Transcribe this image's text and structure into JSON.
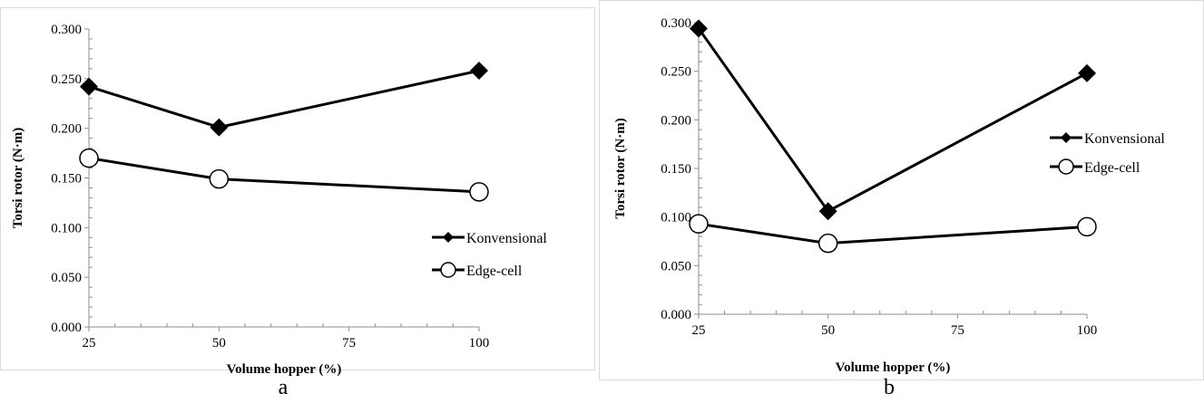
{
  "chart_data": [
    {
      "type": "line",
      "panel_label": "a",
      "xlabel": "Volume hopper (%)",
      "ylabel": "Torsi rotor (N·m)",
      "x_ticks": [
        "25",
        "50",
        "75",
        "100"
      ],
      "y_ticks": [
        "0.000",
        "0.050",
        "0.100",
        "0.150",
        "0.200",
        "0.250",
        "0.300"
      ],
      "ylim": [
        0,
        0.3
      ],
      "x": [
        25,
        50,
        100
      ],
      "legend_position": "right",
      "series": [
        {
          "name": "Konvensional",
          "marker": "filled-diamond",
          "values": [
            0.242,
            0.201,
            0.258
          ]
        },
        {
          "name": "Edge-cell",
          "marker": "open-circle",
          "values": [
            0.17,
            0.149,
            0.136
          ]
        }
      ]
    },
    {
      "type": "line",
      "panel_label": "b",
      "xlabel": "Volume hopper (%)",
      "ylabel": "Torsi rotor (N·m)",
      "x_ticks": [
        "25",
        "50",
        "75",
        "100"
      ],
      "y_ticks": [
        "0.000",
        "0.050",
        "0.100",
        "0.150",
        "0.200",
        "0.250",
        "0.300"
      ],
      "ylim": [
        0,
        0.3
      ],
      "x": [
        25,
        50,
        100
      ],
      "legend_position": "right",
      "series": [
        {
          "name": "Konvensional",
          "marker": "filled-diamond",
          "values": [
            0.294,
            0.106,
            0.248
          ]
        },
        {
          "name": "Edge-cell",
          "marker": "open-circle",
          "values": [
            0.093,
            0.073,
            0.09
          ]
        }
      ]
    }
  ]
}
